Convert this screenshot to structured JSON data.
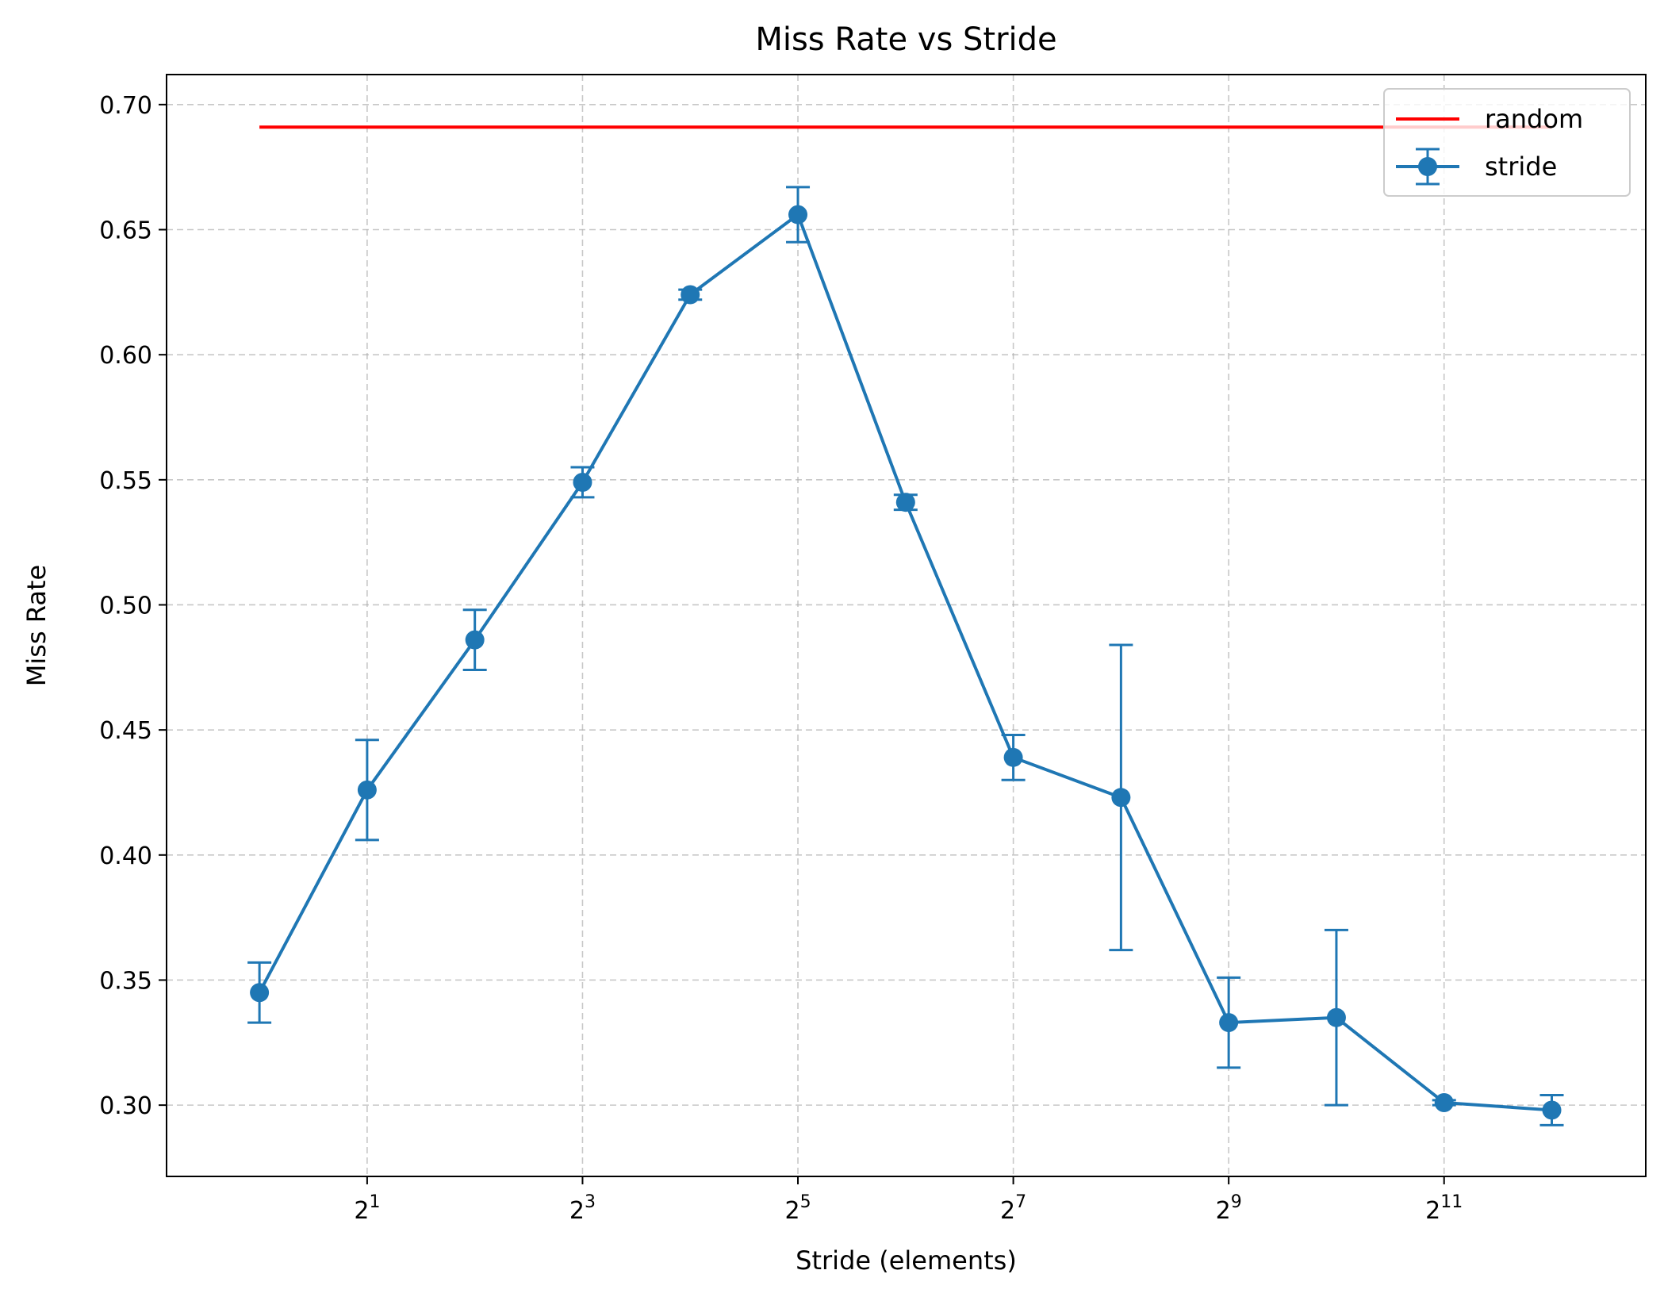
{
  "chart_data": {
    "type": "line",
    "title": "Miss Rate vs Stride",
    "xlabel": "Stride (elements)",
    "ylabel": "Miss Rate",
    "x_scale": "log2",
    "xlim": [
      0.55,
      7500
    ],
    "ylim": [
      0.2715,
      0.712
    ],
    "grid": true,
    "legend_position": "top-right",
    "x_ticks": [
      {
        "value": 2,
        "base": "2",
        "exp": "1"
      },
      {
        "value": 8,
        "base": "2",
        "exp": "3"
      },
      {
        "value": 32,
        "base": "2",
        "exp": "5"
      },
      {
        "value": 128,
        "base": "2",
        "exp": "7"
      },
      {
        "value": 512,
        "base": "2",
        "exp": "9"
      },
      {
        "value": 2048,
        "base": "2",
        "exp": "11"
      }
    ],
    "y_ticks": [
      "0.30",
      "0.35",
      "0.40",
      "0.45",
      "0.50",
      "0.55",
      "0.60",
      "0.65",
      "0.70"
    ],
    "series": [
      {
        "name": "random",
        "color": "#ff0000",
        "style": "line",
        "x": [
          1,
          4096
        ],
        "y": [
          0.691,
          0.691
        ]
      },
      {
        "name": "stride",
        "color": "#1f77b4",
        "style": "errorbar",
        "x": [
          1,
          2,
          4,
          8,
          16,
          32,
          64,
          128,
          256,
          512,
          1024,
          2048,
          4096
        ],
        "y": [
          0.345,
          0.426,
          0.486,
          0.549,
          0.624,
          0.656,
          0.541,
          0.439,
          0.423,
          0.333,
          0.335,
          0.301,
          0.298
        ],
        "yerr": [
          0.012,
          0.02,
          0.012,
          0.006,
          0.002,
          0.011,
          0.003,
          0.009,
          0.061,
          0.018,
          0.035,
          0.001,
          0.006
        ]
      }
    ]
  }
}
